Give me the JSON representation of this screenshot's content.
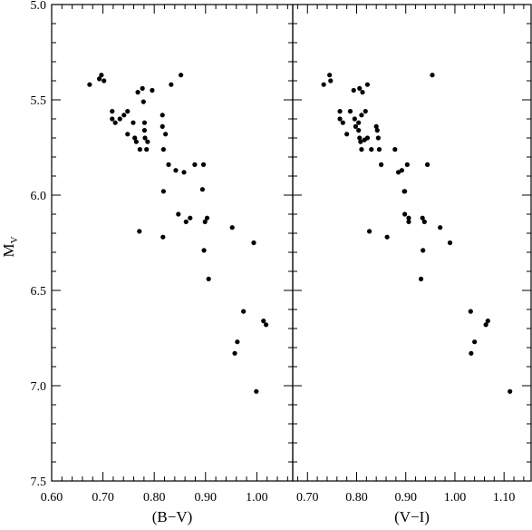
{
  "chart_data": [
    {
      "type": "scatter",
      "title": "",
      "xlabel": "(B−V)",
      "ylabel_main": "M",
      "ylabel_sub": "V",
      "xlim": [
        0.6,
        1.07
      ],
      "ylim": [
        5.0,
        7.5
      ],
      "y_inverted": true,
      "x_tick_labels": [
        "0.60",
        "0.70",
        "0.80",
        "0.90",
        "1.00"
      ],
      "x_tick_values": [
        0.6,
        0.7,
        0.8,
        0.9,
        1.0
      ],
      "x_minor_step": 0.02,
      "y_tick_labels": [
        "5.0",
        "5.5",
        "6.0",
        "6.5",
        "7.0",
        "7.5"
      ],
      "y_tick_values": [
        5.0,
        5.5,
        6.0,
        6.5,
        7.0,
        7.5
      ],
      "y_minor_step": 0.1,
      "grid": false,
      "marker_color": "#000000",
      "points": [
        [
          0.674,
          5.42
        ],
        [
          0.693,
          5.39
        ],
        [
          0.697,
          5.37
        ],
        [
          0.702,
          5.4
        ],
        [
          0.718,
          5.56
        ],
        [
          0.718,
          5.6
        ],
        [
          0.724,
          5.62
        ],
        [
          0.733,
          5.6
        ],
        [
          0.741,
          5.58
        ],
        [
          0.748,
          5.56
        ],
        [
          0.748,
          5.68
        ],
        [
          0.759,
          5.62
        ],
        [
          0.762,
          5.7
        ],
        [
          0.765,
          5.72
        ],
        [
          0.768,
          5.46
        ],
        [
          0.772,
          5.76
        ],
        [
          0.777,
          5.44
        ],
        [
          0.779,
          5.51
        ],
        [
          0.781,
          5.62
        ],
        [
          0.781,
          5.66
        ],
        [
          0.782,
          5.7
        ],
        [
          0.785,
          5.76
        ],
        [
          0.787,
          5.72
        ],
        [
          0.796,
          5.45
        ],
        [
          0.816,
          5.58
        ],
        [
          0.816,
          5.64
        ],
        [
          0.818,
          5.76
        ],
        [
          0.822,
          5.68
        ],
        [
          0.828,
          5.84
        ],
        [
          0.833,
          5.42
        ],
        [
          0.842,
          5.87
        ],
        [
          0.852,
          5.37
        ],
        [
          0.858,
          5.88
        ],
        [
          0.879,
          5.84
        ],
        [
          0.894,
          5.97
        ],
        [
          0.896,
          5.84
        ],
        [
          0.818,
          5.98
        ],
        [
          0.847,
          6.1
        ],
        [
          0.862,
          6.14
        ],
        [
          0.87,
          6.12
        ],
        [
          0.899,
          6.14
        ],
        [
          0.903,
          6.12
        ],
        [
          0.952,
          6.17
        ],
        [
          0.771,
          6.19
        ],
        [
          0.817,
          6.22
        ],
        [
          0.994,
          6.25
        ],
        [
          0.897,
          6.29
        ],
        [
          0.906,
          6.44
        ],
        [
          0.974,
          6.61
        ],
        [
          1.013,
          6.66
        ],
        [
          1.018,
          6.68
        ],
        [
          0.962,
          6.77
        ],
        [
          0.957,
          6.83
        ],
        [
          0.999,
          7.03
        ]
      ]
    },
    {
      "type": "scatter",
      "title": "",
      "xlabel": "(V−I)",
      "xlim": [
        0.67,
        1.155
      ],
      "ylim": [
        5.0,
        7.5
      ],
      "y_inverted": true,
      "x_tick_labels": [
        "0.70",
        "0.80",
        "0.90",
        "1.00",
        "1.10"
      ],
      "x_tick_values": [
        0.7,
        0.8,
        0.9,
        1.0,
        1.1
      ],
      "x_minor_step": 0.02,
      "y_minor_step": 0.1,
      "grid": false,
      "marker_color": "#000000",
      "points": [
        [
          0.733,
          5.42
        ],
        [
          0.745,
          5.37
        ],
        [
          0.747,
          5.4
        ],
        [
          0.794,
          5.45
        ],
        [
          0.806,
          5.44
        ],
        [
          0.812,
          5.46
        ],
        [
          0.822,
          5.42
        ],
        [
          0.766,
          5.56
        ],
        [
          0.766,
          5.6
        ],
        [
          0.772,
          5.62
        ],
        [
          0.787,
          5.56
        ],
        [
          0.796,
          5.6
        ],
        [
          0.804,
          5.62
        ],
        [
          0.81,
          5.58
        ],
        [
          0.818,
          5.56
        ],
        [
          0.78,
          5.68
        ],
        [
          0.798,
          5.64
        ],
        [
          0.804,
          5.66
        ],
        [
          0.806,
          5.7
        ],
        [
          0.808,
          5.72
        ],
        [
          0.816,
          5.71
        ],
        [
          0.822,
          5.7
        ],
        [
          0.84,
          5.64
        ],
        [
          0.842,
          5.66
        ],
        [
          0.844,
          5.7
        ],
        [
          0.83,
          5.76
        ],
        [
          0.81,
          5.76
        ],
        [
          0.846,
          5.76
        ],
        [
          0.85,
          5.84
        ],
        [
          0.878,
          5.76
        ],
        [
          0.885,
          5.88
        ],
        [
          0.892,
          5.87
        ],
        [
          0.903,
          5.84
        ],
        [
          0.944,
          5.84
        ],
        [
          0.954,
          5.37
        ],
        [
          0.897,
          5.98
        ],
        [
          0.898,
          5.98
        ],
        [
          0.898,
          6.1
        ],
        [
          0.906,
          6.14
        ],
        [
          0.906,
          6.12
        ],
        [
          0.934,
          6.12
        ],
        [
          0.938,
          6.14
        ],
        [
          0.97,
          6.17
        ],
        [
          0.826,
          6.19
        ],
        [
          0.862,
          6.22
        ],
        [
          0.99,
          6.25
        ],
        [
          0.935,
          6.29
        ],
        [
          0.931,
          6.44
        ],
        [
          1.032,
          6.61
        ],
        [
          1.067,
          6.66
        ],
        [
          1.063,
          6.68
        ],
        [
          1.04,
          6.77
        ],
        [
          1.033,
          6.83
        ],
        [
          1.112,
          7.03
        ]
      ]
    }
  ]
}
